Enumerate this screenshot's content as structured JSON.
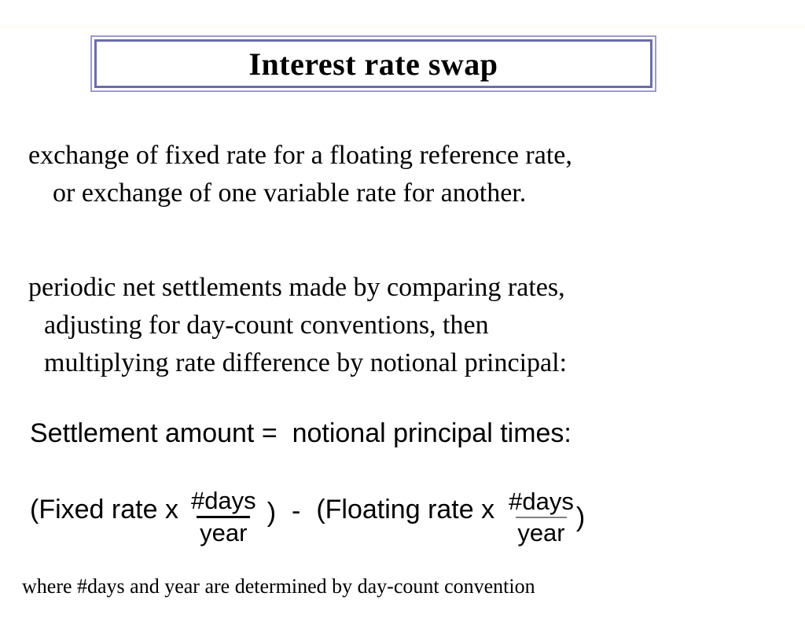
{
  "slide": {
    "title": "Interest rate swap",
    "para1": {
      "lines": [
        "exchange of fixed rate for a floating reference rate,",
        "or exchange of one variable rate for another."
      ]
    },
    "para2": {
      "lines": [
        "periodic net settlements made by comparing rates,",
        "adjusting for day-count conventions, then",
        "multiplying rate difference by notional principal:"
      ]
    },
    "settlement_line": "Settlement amount =  notional principal times:",
    "formula": {
      "open_fixed": "(Fixed rate x",
      "fraction1": {
        "num": "#days",
        "den": "year"
      },
      "close1": ")",
      "minus": "-",
      "open_floating": "(Floating rate x",
      "fraction2": {
        "num": "#days",
        "den": "year"
      },
      "close2": ")"
    },
    "footnote": "where #days and year are determined by day-count convention"
  },
  "colors": {
    "text_color": "#000000",
    "border_outer": "#9a9ace",
    "border_inner": "#6c6cac",
    "fraction_bar_1": "#000000",
    "fraction_bar_2": "#808080",
    "background": "#ffffff"
  }
}
